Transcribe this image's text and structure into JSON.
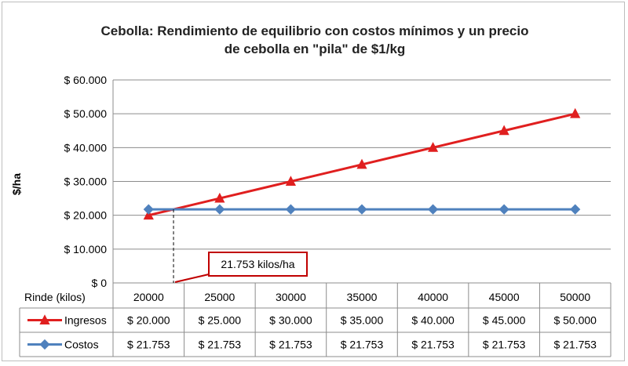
{
  "chart_data": {
    "type": "line",
    "title_line1": "Cebolla: Rendimiento de equilibrio con costos mínimos y un precio",
    "title_line2": "de cebolla en \"pila\" de $1/kg",
    "ylabel": "$/ha",
    "xlabel": "Rinde (kilos)",
    "ylim": [
      0,
      60000
    ],
    "y_ticks": [
      0,
      10000,
      20000,
      30000,
      40000,
      50000,
      60000
    ],
    "y_tick_labels": [
      "$ 0",
      "$ 10.000",
      "$ 20.000",
      "$ 30.000",
      "$ 40.000",
      "$ 50.000",
      "$ 60.000"
    ],
    "grid": true,
    "categories": [
      "20000",
      "25000",
      "30000",
      "35000",
      "40000",
      "45000",
      "50000"
    ],
    "series": [
      {
        "name": "Ingresos",
        "color": "#e01f1f",
        "marker": "triangle",
        "values": [
          20000,
          25000,
          30000,
          35000,
          40000,
          45000,
          50000
        ],
        "labels": [
          "$ 20.000",
          "$ 25.000",
          "$ 30.000",
          "$ 35.000",
          "$ 40.000",
          "$ 45.000",
          "$ 50.000"
        ]
      },
      {
        "name": "Costos",
        "color": "#4f81bd",
        "marker": "diamond",
        "values": [
          21753,
          21753,
          21753,
          21753,
          21753,
          21753,
          21753
        ],
        "labels": [
          "$ 21.753",
          "$ 21.753",
          "$ 21.753",
          "$ 21.753",
          "$ 21.753",
          "$ 21.753",
          "$ 21.753"
        ]
      }
    ],
    "annotation": {
      "text": "21.753 kilos/ha",
      "x_value": 21753,
      "color": "#c00000"
    }
  }
}
